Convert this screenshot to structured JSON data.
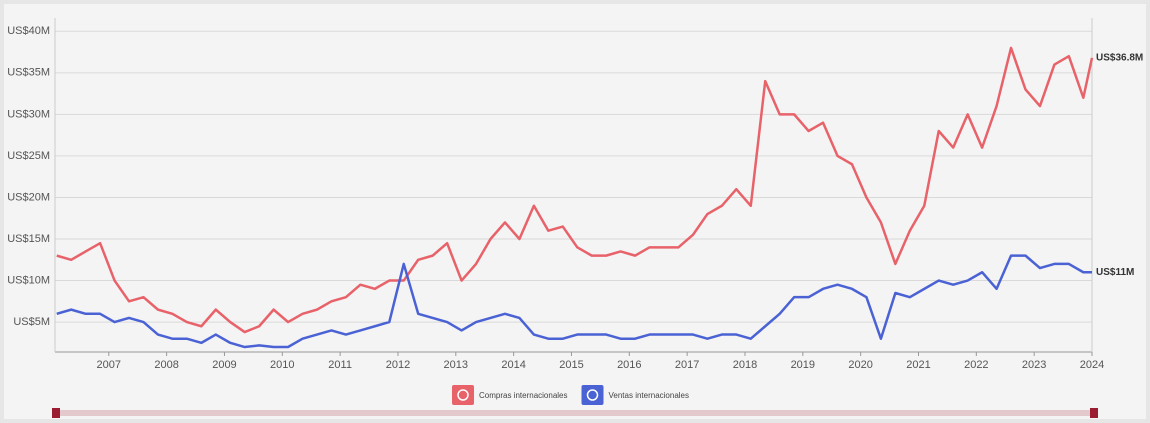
{
  "chart_data": {
    "type": "line",
    "x": [
      2006.1,
      2006.35,
      2006.6,
      2006.85,
      2007.1,
      2007.35,
      2007.6,
      2007.85,
      2008.1,
      2008.35,
      2008.6,
      2008.85,
      2009.1,
      2009.35,
      2009.6,
      2009.85,
      2010.1,
      2010.35,
      2010.6,
      2010.85,
      2011.1,
      2011.35,
      2011.6,
      2011.85,
      2012.1,
      2012.35,
      2012.6,
      2012.85,
      2013.1,
      2013.35,
      2013.6,
      2013.85,
      2014.1,
      2014.35,
      2014.6,
      2014.85,
      2015.1,
      2015.35,
      2015.6,
      2015.85,
      2016.1,
      2016.35,
      2016.6,
      2016.85,
      2017.1,
      2017.35,
      2017.6,
      2017.85,
      2018.1,
      2018.35,
      2018.6,
      2018.85,
      2019.1,
      2019.35,
      2019.6,
      2019.85,
      2020.1,
      2020.35,
      2020.6,
      2020.85,
      2021.1,
      2021.35,
      2021.6,
      2021.85,
      2022.1,
      2022.35,
      2022.6,
      2022.85,
      2023.1,
      2023.35,
      2023.6,
      2023.85,
      2024.0
    ],
    "series": [
      {
        "name": "Compras internacionales",
        "color": "#e8626a",
        "last_label": "US$36.8M",
        "values": [
          13,
          12.5,
          13.5,
          14.5,
          10,
          7.5,
          8,
          6.5,
          6,
          5,
          4.5,
          6.5,
          5,
          3.8,
          4.5,
          6.5,
          5,
          6,
          6.5,
          7.5,
          8,
          9.5,
          9,
          10,
          10,
          12.5,
          13,
          14.5,
          10,
          12,
          15,
          17,
          15,
          19,
          16,
          16.5,
          14,
          13,
          13,
          13.5,
          13,
          14,
          14,
          14,
          15.5,
          18,
          19,
          21,
          19,
          34,
          30,
          30,
          28,
          29,
          25,
          24,
          20,
          17,
          12,
          16,
          19,
          28,
          26,
          30,
          26,
          31,
          38,
          33,
          31,
          36,
          37,
          32,
          36.8
        ]
      },
      {
        "name": "Ventas internacionales",
        "color": "#4a62d4",
        "last_label": "US$11M",
        "values": [
          6,
          6.5,
          6,
          6,
          5,
          5.5,
          5,
          3.5,
          3,
          3,
          2.5,
          3.5,
          2.5,
          2,
          2.2,
          2,
          2,
          3,
          3.5,
          4,
          3.5,
          4,
          4.5,
          5,
          12,
          6,
          5.5,
          5,
          4,
          5,
          5.5,
          6,
          5.5,
          3.5,
          3,
          3,
          3.5,
          3.5,
          3.5,
          3,
          3,
          3.5,
          3.5,
          3.5,
          3.5,
          3,
          3.5,
          3.5,
          3,
          4.5,
          6,
          8,
          8,
          9,
          9.5,
          9,
          8,
          3,
          8.5,
          8,
          9,
          10,
          9.5,
          10,
          11,
          9,
          13,
          13,
          11.5,
          12,
          12,
          11,
          11
        ]
      }
    ],
    "xlim": [
      2006.07,
      2024.0
    ],
    "xticks": [
      2007,
      2008,
      2009,
      2010,
      2011,
      2012,
      2013,
      2014,
      2015,
      2016,
      2017,
      2018,
      2019,
      2020,
      2021,
      2022,
      2023,
      2024
    ],
    "ylim": [
      1.4,
      41.6
    ],
    "yticks": [
      {
        "value": 5,
        "label": "US$5M"
      },
      {
        "value": 10,
        "label": "US$10M"
      },
      {
        "value": 15,
        "label": "US$15M"
      },
      {
        "value": 20,
        "label": "US$20M"
      },
      {
        "value": 25,
        "label": "US$25M"
      },
      {
        "value": 30,
        "label": "US$30M"
      },
      {
        "value": 35,
        "label": "US$35M"
      },
      {
        "value": 40,
        "label": "US$40M"
      }
    ],
    "grid": true
  }
}
